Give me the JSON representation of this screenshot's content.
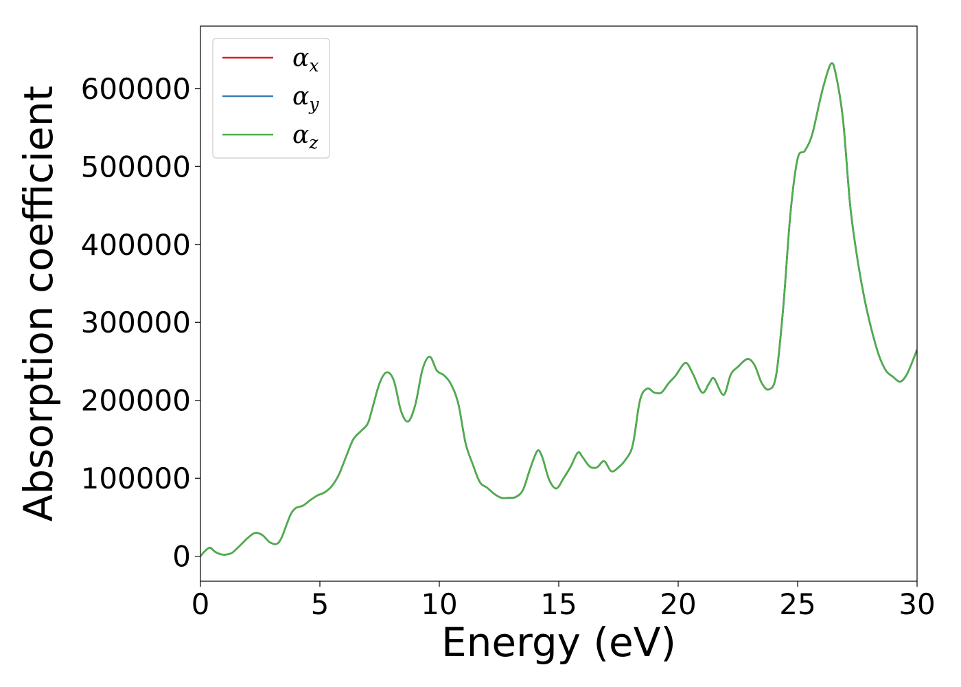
{
  "chart_data": {
    "type": "line",
    "xlabel": "Energy (eV)",
    "ylabel": "Absorption coefficient",
    "xlim": [
      0,
      30
    ],
    "ylim": [
      -32000,
      680000
    ],
    "xticks": [
      0,
      5,
      10,
      15,
      20,
      25,
      30
    ],
    "yticks": [
      0,
      100000,
      200000,
      300000,
      400000,
      500000,
      600000
    ],
    "xtick_labels": [
      "0",
      "5",
      "10",
      "15",
      "20",
      "25",
      "30"
    ],
    "ytick_labels": [
      "0",
      "100000",
      "200000",
      "300000",
      "400000",
      "500000",
      "600000"
    ],
    "grid": false,
    "legend_position": "top-left",
    "legend": [
      {
        "symbol": "α",
        "sub": "x",
        "color": "#e41a1c"
      },
      {
        "symbol": "α",
        "sub": "y",
        "color": "#377eb8"
      },
      {
        "symbol": "α",
        "sub": "z",
        "color": "#4daf4a"
      }
    ],
    "x": [
      0,
      0.2,
      0.4,
      0.6,
      0.8,
      1.0,
      1.3,
      1.6,
      2.0,
      2.3,
      2.6,
      2.9,
      3.2,
      3.4,
      3.6,
      3.8,
      4.0,
      4.3,
      4.6,
      4.9,
      5.2,
      5.5,
      5.8,
      6.1,
      6.4,
      6.7,
      7.0,
      7.2,
      7.5,
      7.8,
      8.1,
      8.4,
      8.7,
      9.0,
      9.3,
      9.6,
      9.9,
      10.2,
      10.5,
      10.8,
      11.1,
      11.4,
      11.7,
      12.0,
      12.3,
      12.6,
      12.9,
      13.2,
      13.5,
      13.8,
      14.1,
      14.3,
      14.6,
      14.9,
      15.2,
      15.5,
      15.8,
      16.0,
      16.3,
      16.6,
      16.9,
      17.2,
      17.5,
      17.8,
      18.1,
      18.4,
      18.7,
      19.0,
      19.3,
      19.6,
      19.9,
      20.3,
      20.6,
      21.0,
      21.3,
      21.5,
      21.9,
      22.2,
      22.5,
      22.9,
      23.2,
      23.5,
      23.8,
      24.1,
      24.4,
      24.7,
      25.0,
      25.3,
      25.6,
      25.9,
      26.1,
      26.4,
      26.6,
      26.9,
      27.2,
      27.5,
      27.8,
      28.1,
      28.4,
      28.7,
      29.0,
      29.3,
      29.6,
      30.0
    ],
    "series": [
      {
        "name": "αx",
        "color": "#e41a1c",
        "values": [
          0,
          7000,
          11000,
          6000,
          3000,
          2000,
          4000,
          12000,
          24000,
          30000,
          27000,
          18000,
          16000,
          24000,
          40000,
          55000,
          62000,
          65000,
          72000,
          78000,
          82000,
          90000,
          105000,
          128000,
          150000,
          160000,
          170000,
          190000,
          222000,
          236000,
          225000,
          186000,
          173000,
          195000,
          240000,
          256000,
          238000,
          232000,
          220000,
          195000,
          145000,
          118000,
          95000,
          88000,
          80000,
          75000,
          75000,
          76000,
          85000,
          112000,
          135000,
          128000,
          98000,
          87000,
          100000,
          115000,
          133000,
          127000,
          115000,
          114000,
          122000,
          109000,
          114000,
          124000,
          143000,
          200000,
          215000,
          210000,
          210000,
          222000,
          232000,
          248000,
          235000,
          210000,
          222000,
          228000,
          207000,
          233000,
          243000,
          253000,
          245000,
          222000,
          214000,
          232000,
          320000,
          440000,
          510000,
          520000,
          540000,
          580000,
          605000,
          632000,
          618000,
          560000,
          450000,
          382000,
          330000,
          290000,
          258000,
          238000,
          230000,
          224000,
          235000,
          265000
        ]
      },
      {
        "name": "αy",
        "color": "#377eb8",
        "values": [
          0,
          7000,
          11000,
          6000,
          3000,
          2000,
          4000,
          12000,
          24000,
          30000,
          27000,
          18000,
          16000,
          24000,
          40000,
          55000,
          62000,
          65000,
          72000,
          78000,
          82000,
          90000,
          105000,
          128000,
          150000,
          160000,
          170000,
          190000,
          222000,
          236000,
          225000,
          186000,
          173000,
          195000,
          240000,
          256000,
          238000,
          232000,
          220000,
          195000,
          145000,
          118000,
          95000,
          88000,
          80000,
          75000,
          75000,
          76000,
          85000,
          112000,
          135000,
          128000,
          98000,
          87000,
          100000,
          115000,
          133000,
          127000,
          115000,
          114000,
          122000,
          109000,
          114000,
          124000,
          143000,
          200000,
          215000,
          210000,
          210000,
          222000,
          232000,
          248000,
          235000,
          210000,
          222000,
          228000,
          207000,
          233000,
          243000,
          253000,
          245000,
          222000,
          214000,
          232000,
          320000,
          440000,
          510000,
          520000,
          540000,
          580000,
          605000,
          632000,
          618000,
          560000,
          450000,
          382000,
          330000,
          290000,
          258000,
          238000,
          230000,
          224000,
          235000,
          265000
        ]
      },
      {
        "name": "αz",
        "color": "#4daf4a",
        "values": [
          0,
          7000,
          11000,
          6000,
          3000,
          2000,
          4000,
          12000,
          24000,
          30000,
          27000,
          18000,
          16000,
          24000,
          40000,
          55000,
          62000,
          65000,
          72000,
          78000,
          82000,
          90000,
          105000,
          128000,
          150000,
          160000,
          170000,
          190000,
          222000,
          236000,
          225000,
          186000,
          173000,
          195000,
          240000,
          256000,
          238000,
          232000,
          220000,
          195000,
          145000,
          118000,
          95000,
          88000,
          80000,
          75000,
          75000,
          76000,
          85000,
          112000,
          135000,
          128000,
          98000,
          87000,
          100000,
          115000,
          133000,
          127000,
          115000,
          114000,
          122000,
          109000,
          114000,
          124000,
          143000,
          200000,
          215000,
          210000,
          210000,
          222000,
          232000,
          248000,
          235000,
          210000,
          222000,
          228000,
          207000,
          233000,
          243000,
          253000,
          245000,
          222000,
          214000,
          232000,
          320000,
          440000,
          510000,
          520000,
          540000,
          580000,
          605000,
          632000,
          618000,
          560000,
          450000,
          382000,
          330000,
          290000,
          258000,
          238000,
          230000,
          224000,
          235000,
          265000
        ]
      }
    ]
  }
}
